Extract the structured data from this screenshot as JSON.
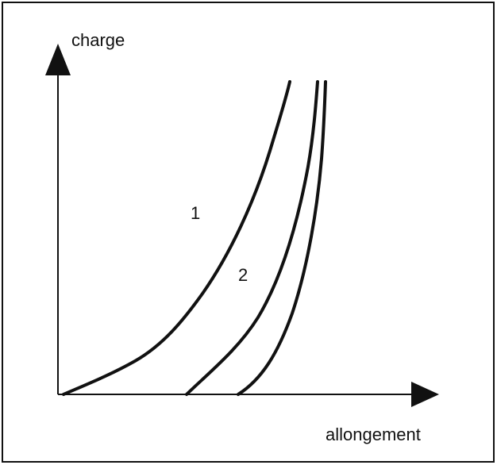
{
  "axes": {
    "y_label": "charge",
    "x_label": "allongement"
  },
  "curve_labels": [
    "1",
    "2"
  ]
}
